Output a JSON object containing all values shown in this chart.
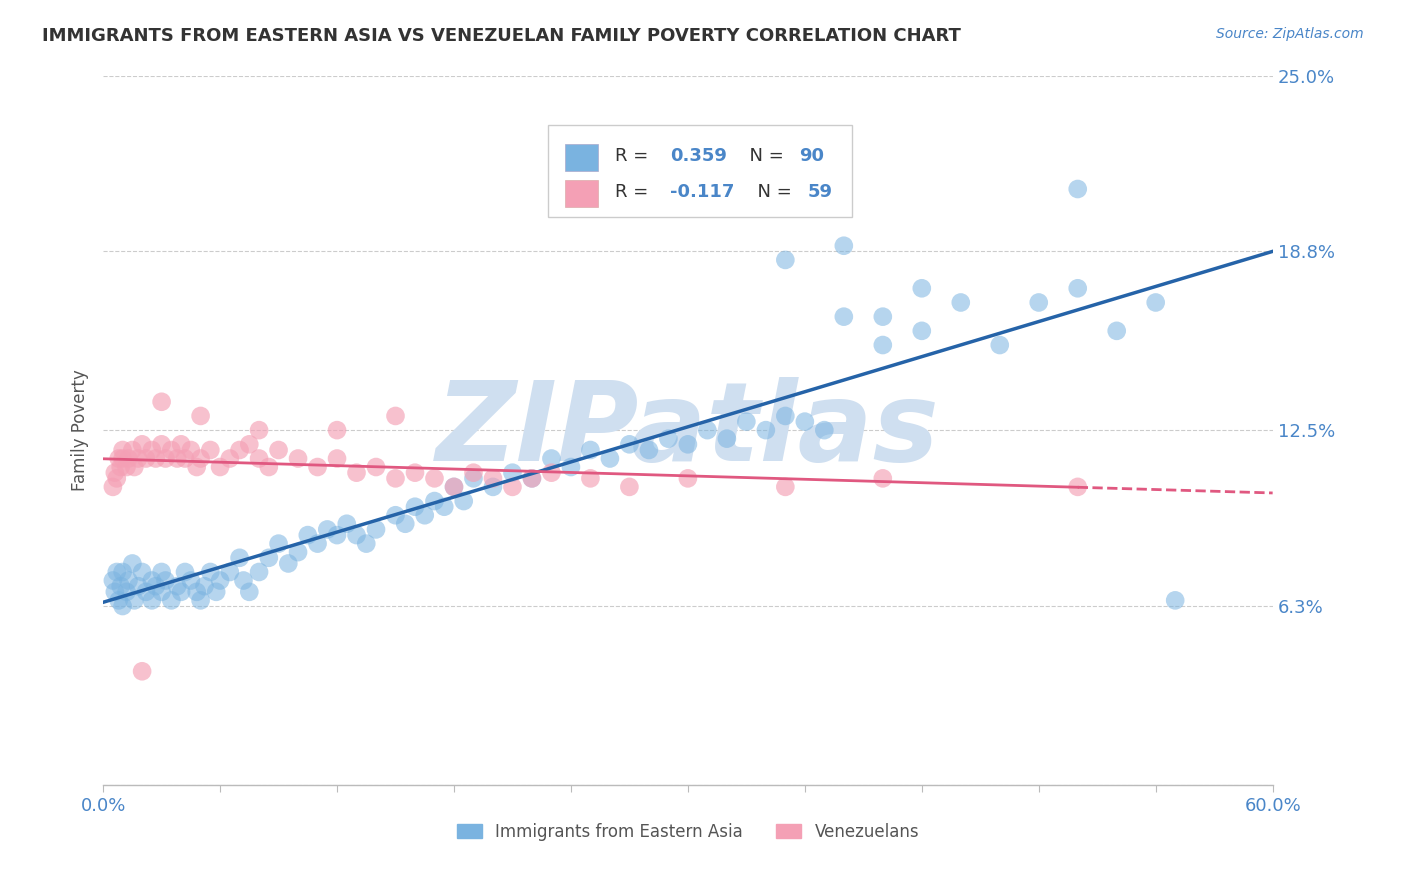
{
  "title": "IMMIGRANTS FROM EASTERN ASIA VS VENEZUELAN FAMILY POVERTY CORRELATION CHART",
  "source_text": "Source: ZipAtlas.com",
  "ylabel": "Family Poverty",
  "xlim": [
    0.0,
    0.6
  ],
  "ylim": [
    0.0,
    0.25
  ],
  "ytick_vals": [
    0.0,
    0.063,
    0.125,
    0.188,
    0.25
  ],
  "ytick_labels": [
    "",
    "6.3%",
    "12.5%",
    "18.8%",
    "25.0%"
  ],
  "xtick_labels": [
    "0.0%",
    "",
    "",
    "",
    "",
    "",
    "",
    "",
    "",
    "",
    "60.0%"
  ],
  "background_color": "#ffffff",
  "grid_color": "#cccccc",
  "blue_dot_color": "#7ab3e0",
  "pink_dot_color": "#f4a0b5",
  "blue_line_color": "#2563a8",
  "pink_line_color": "#e05880",
  "tick_label_color": "#4a86c8",
  "ylabel_color": "#555555",
  "title_color": "#333333",
  "source_color": "#4a86c8",
  "watermark_color": "#cfdff0",
  "watermark": "ZIPatlas",
  "R_blue": 0.359,
  "N_blue": 90,
  "R_pink": -0.117,
  "N_pink": 59,
  "legend_label_blue": "Immigrants from Eastern Asia",
  "legend_label_pink": "Venezuelans",
  "blue_x": [
    0.005,
    0.006,
    0.007,
    0.008,
    0.009,
    0.01,
    0.01,
    0.012,
    0.013,
    0.015,
    0.016,
    0.018,
    0.02,
    0.022,
    0.025,
    0.025,
    0.027,
    0.03,
    0.03,
    0.032,
    0.035,
    0.038,
    0.04,
    0.042,
    0.045,
    0.048,
    0.05,
    0.052,
    0.055,
    0.058,
    0.06,
    0.065,
    0.07,
    0.072,
    0.075,
    0.08,
    0.085,
    0.09,
    0.095,
    0.1,
    0.105,
    0.11,
    0.115,
    0.12,
    0.125,
    0.13,
    0.135,
    0.14,
    0.15,
    0.155,
    0.16,
    0.165,
    0.17,
    0.175,
    0.18,
    0.185,
    0.19,
    0.2,
    0.21,
    0.22,
    0.23,
    0.24,
    0.25,
    0.26,
    0.27,
    0.28,
    0.29,
    0.3,
    0.31,
    0.32,
    0.33,
    0.34,
    0.35,
    0.36,
    0.37,
    0.38,
    0.4,
    0.42,
    0.44,
    0.46,
    0.48,
    0.5,
    0.52,
    0.54,
    0.38,
    0.42,
    0.5,
    0.55,
    0.4,
    0.35
  ],
  "blue_y": [
    0.072,
    0.068,
    0.075,
    0.065,
    0.07,
    0.063,
    0.075,
    0.068,
    0.072,
    0.078,
    0.065,
    0.07,
    0.075,
    0.068,
    0.072,
    0.065,
    0.07,
    0.068,
    0.075,
    0.072,
    0.065,
    0.07,
    0.068,
    0.075,
    0.072,
    0.068,
    0.065,
    0.07,
    0.075,
    0.068,
    0.072,
    0.075,
    0.08,
    0.072,
    0.068,
    0.075,
    0.08,
    0.085,
    0.078,
    0.082,
    0.088,
    0.085,
    0.09,
    0.088,
    0.092,
    0.088,
    0.085,
    0.09,
    0.095,
    0.092,
    0.098,
    0.095,
    0.1,
    0.098,
    0.105,
    0.1,
    0.108,
    0.105,
    0.11,
    0.108,
    0.115,
    0.112,
    0.118,
    0.115,
    0.12,
    0.118,
    0.122,
    0.12,
    0.125,
    0.122,
    0.128,
    0.125,
    0.13,
    0.128,
    0.125,
    0.165,
    0.155,
    0.16,
    0.17,
    0.155,
    0.17,
    0.175,
    0.16,
    0.17,
    0.19,
    0.175,
    0.21,
    0.065,
    0.165,
    0.185
  ],
  "pink_x": [
    0.005,
    0.006,
    0.007,
    0.008,
    0.009,
    0.01,
    0.01,
    0.012,
    0.013,
    0.015,
    0.016,
    0.018,
    0.02,
    0.022,
    0.025,
    0.027,
    0.03,
    0.032,
    0.035,
    0.038,
    0.04,
    0.042,
    0.045,
    0.048,
    0.05,
    0.055,
    0.06,
    0.065,
    0.07,
    0.075,
    0.08,
    0.085,
    0.09,
    0.1,
    0.11,
    0.12,
    0.13,
    0.14,
    0.15,
    0.16,
    0.17,
    0.18,
    0.19,
    0.2,
    0.21,
    0.22,
    0.23,
    0.25,
    0.27,
    0.3,
    0.35,
    0.4,
    0.5,
    0.03,
    0.05,
    0.08,
    0.12,
    0.15,
    0.02
  ],
  "pink_y": [
    0.105,
    0.11,
    0.108,
    0.115,
    0.112,
    0.115,
    0.118,
    0.112,
    0.115,
    0.118,
    0.112,
    0.115,
    0.12,
    0.115,
    0.118,
    0.115,
    0.12,
    0.115,
    0.118,
    0.115,
    0.12,
    0.115,
    0.118,
    0.112,
    0.115,
    0.118,
    0.112,
    0.115,
    0.118,
    0.12,
    0.115,
    0.112,
    0.118,
    0.115,
    0.112,
    0.115,
    0.11,
    0.112,
    0.108,
    0.11,
    0.108,
    0.105,
    0.11,
    0.108,
    0.105,
    0.108,
    0.11,
    0.108,
    0.105,
    0.108,
    0.105,
    0.108,
    0.105,
    0.135,
    0.13,
    0.125,
    0.125,
    0.13,
    0.04
  ]
}
